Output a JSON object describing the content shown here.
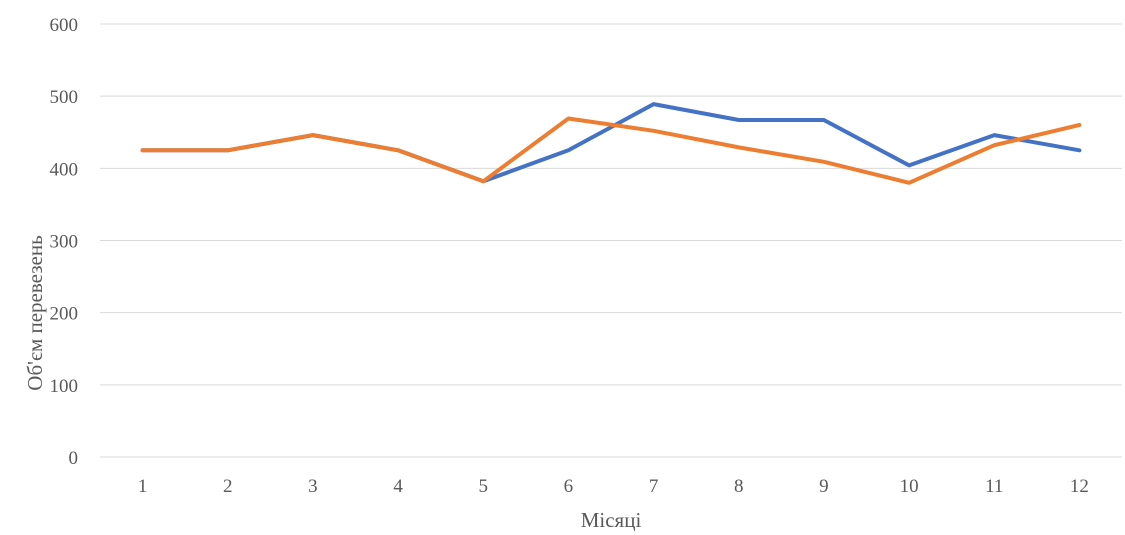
{
  "chart_data": {
    "type": "line",
    "title": "",
    "xlabel": "Місяці",
    "ylabel": "Об'єм перевезень",
    "categories": [
      "1",
      "2",
      "3",
      "4",
      "5",
      "6",
      "7",
      "8",
      "9",
      "10",
      "11",
      "12"
    ],
    "ylim": [
      0,
      600
    ],
    "yticks": [
      0,
      100,
      200,
      300,
      400,
      500,
      600
    ],
    "grid": true,
    "legend": "none",
    "series": [
      {
        "color": "#4472c4",
        "values": [
          425,
          425,
          446,
          425,
          382,
          425,
          489,
          467,
          467,
          404,
          446,
          425
        ]
      },
      {
        "color": "#ed7d31",
        "values": [
          425,
          425,
          446,
          425,
          382,
          469,
          452,
          429,
          409,
          380,
          432,
          460
        ]
      }
    ]
  }
}
